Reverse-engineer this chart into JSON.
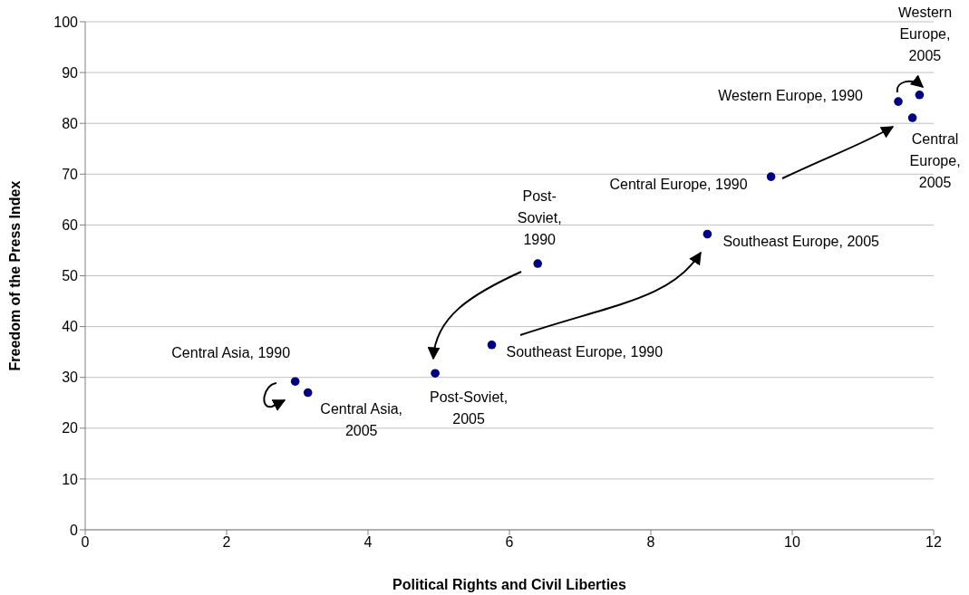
{
  "chart_data": {
    "type": "scatter",
    "xlabel": "Political Rights and Civil Liberties",
    "ylabel": "Freedom of the Press Index",
    "x": [
      2.97,
      3.15,
      4.95,
      6.4,
      5.75,
      8.8,
      9.7,
      11.5,
      11.8,
      11.7
    ],
    "series": [
      {
        "color": "#000080",
        "values": [
          29.2,
          27,
          30.8,
          52.4,
          36.4,
          58.2,
          69.5,
          84.3,
          85.6,
          81.1
        ]
      }
    ],
    "xlim": [
      0,
      12
    ],
    "xticks": [
      0,
      2,
      4,
      6,
      8,
      10,
      12
    ],
    "ylim": [
      0,
      100
    ],
    "yticks": [
      0,
      10,
      20,
      30,
      40,
      50,
      60,
      70,
      80,
      90,
      100
    ],
    "grid": "y",
    "legend": false,
    "marker": "circle",
    "annotations": [
      {
        "text": "Central Asia, 1990",
        "x": 2.97,
        "y": 29.2
      },
      {
        "text": "Central Asia,\n2005",
        "x": 3.15,
        "y": 27
      },
      {
        "text": "Post-Soviet,\n2005",
        "x": 4.95,
        "y": 30.8
      },
      {
        "text": "Post-\nSoviet,\n1990",
        "x": 6.4,
        "y": 52.4
      },
      {
        "text": "Southeast Europe, 1990",
        "x": 5.75,
        "y": 36.4
      },
      {
        "text": "Southeast Europe, 2005",
        "x": 8.8,
        "y": 58.2
      },
      {
        "text": "Central Europe, 1990",
        "x": 9.7,
        "y": 69.5
      },
      {
        "text": "Western Europe, 1990",
        "x": 11.5,
        "y": 84.3
      },
      {
        "text": "Western\nEurope,\n2005",
        "x": 11.8,
        "y": 85.6
      },
      {
        "text": "Central\nEurope,\n2005",
        "x": 11.7,
        "y": 81.1
      }
    ]
  }
}
